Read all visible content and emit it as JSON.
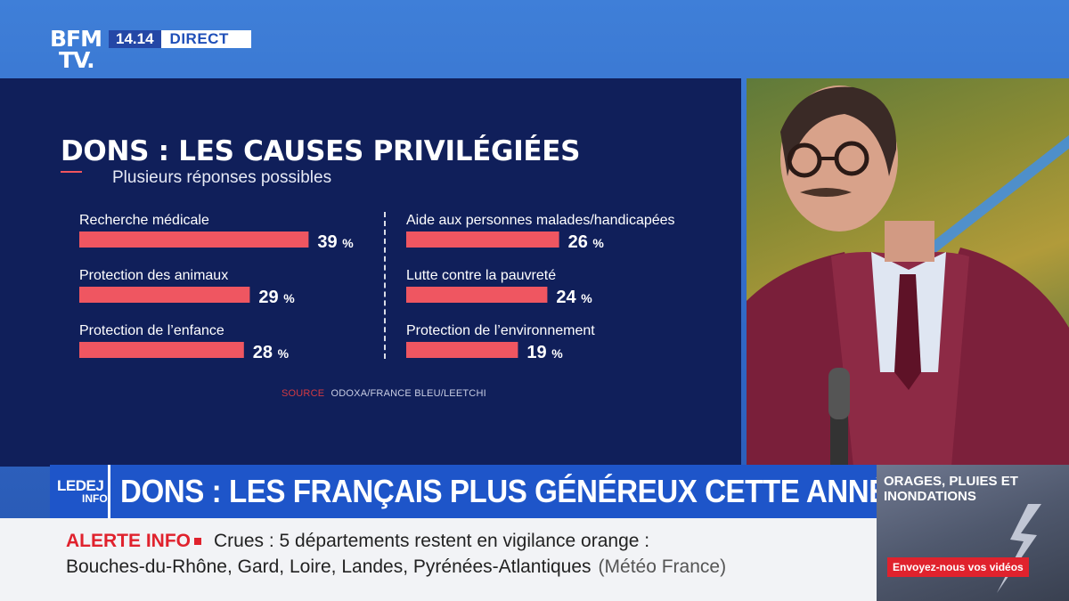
{
  "channel": {
    "logo_line1": "BFM",
    "logo_line2": "TV.",
    "time": "14.14",
    "live": "DIRECT"
  },
  "chart_data": {
    "type": "bar",
    "title": "DONS : LES CAUSES PRIVILÉGIÉES",
    "subtitle": "Plusieurs réponses possibles",
    "unit": "%",
    "source_label": "SOURCE",
    "source": "ODOXA/FRANCE BLEU/LEETCHI",
    "bar_color": "#ef5661",
    "columns": [
      {
        "items": [
          {
            "label": "Recherche médicale",
            "value": 39
          },
          {
            "label": "Protection des animaux",
            "value": 29
          },
          {
            "label": "Protection de l’enfance",
            "value": 28
          }
        ]
      },
      {
        "items": [
          {
            "label": "Aide aux personnes malades/handicapées",
            "value": 26
          },
          {
            "label": "Lutte contre la pauvreté",
            "value": 24
          },
          {
            "label": "Protection de l’environnement",
            "value": 19
          }
        ]
      }
    ]
  },
  "band": {
    "program_line1": "LEDEJ",
    "program_line2": "INFO",
    "headline": "DONS : LES FRANÇAIS PLUS GÉNÉREUX CETTE ANNÉE"
  },
  "ticker": {
    "label": "ALERTE INFO",
    "line1": "Crues : 5 départements restent en vigilance orange :",
    "line2": "Bouches-du-Rhône, Gard, Loire, Landes, Pyrénées-Atlantiques",
    "source": "(Météo France)"
  },
  "promo": {
    "title": "ORAGES, PLUIES ET INONDATIONS",
    "button": "Envoyez-nous vos vidéos"
  },
  "colors": {
    "panel": "#101f5a",
    "band": "#1e55c9",
    "alert": "#e0222d"
  }
}
